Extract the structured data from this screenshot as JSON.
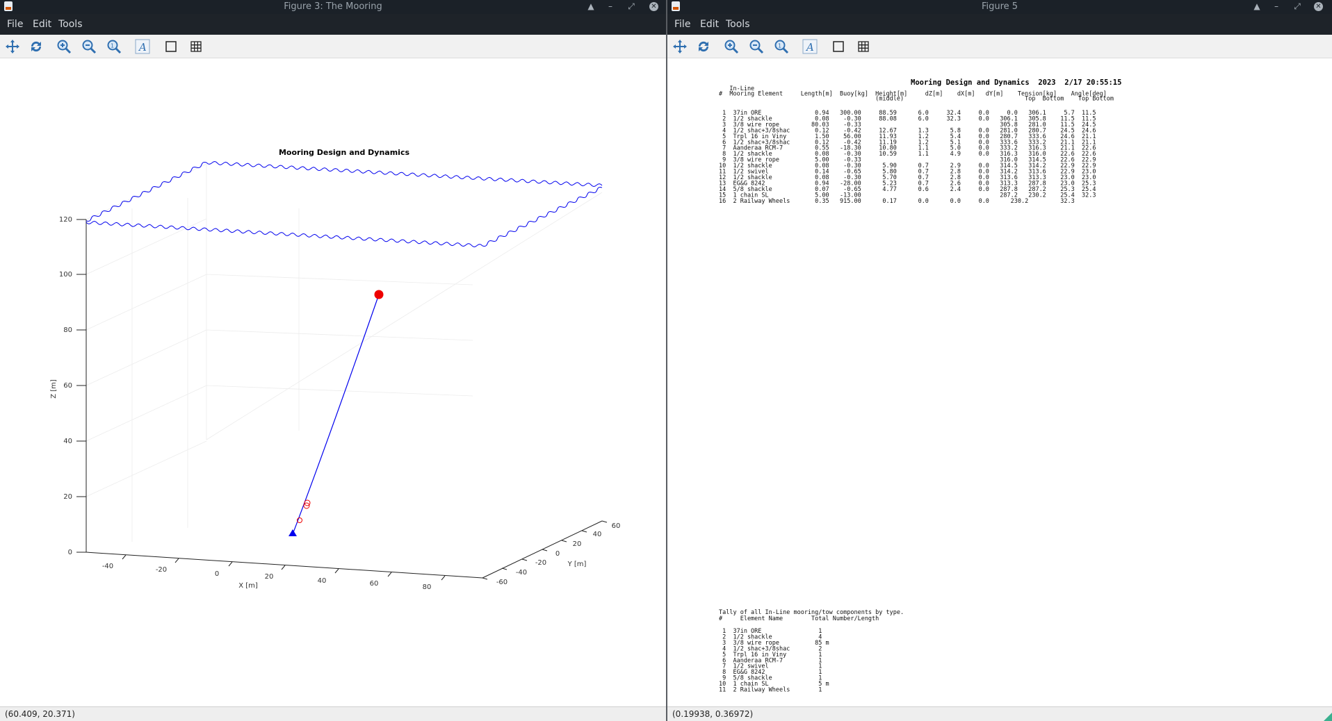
{
  "left_window": {
    "title": "Figure 3: The Mooring",
    "menu": [
      "File",
      "Edit",
      "Tools"
    ],
    "tool_icons": [
      "pan-icon",
      "rotate-icon",
      "zoom-in-icon",
      "zoom-out-icon",
      "zoom-reset-icon",
      "text-insert-icon",
      "axes-box-icon",
      "grid-icon"
    ],
    "status": "(60.409, 20.371)",
    "plot": {
      "title": "Mooring Design and Dynamics",
      "xlabel": "X [m]",
      "ylabel": "Y [m]",
      "zlabel": "Z [m]",
      "z_ticks": [
        "0",
        "20",
        "40",
        "60",
        "80",
        "100",
        "120"
      ],
      "x_ticks": [
        "-40",
        "-20",
        "0",
        "20",
        "40",
        "60",
        "80"
      ],
      "y_ticks": [
        "-60",
        "-40",
        "-20",
        "0",
        "20",
        "40",
        "60"
      ],
      "line_color": "#0000ee",
      "float_color": "#ee0000",
      "anchor_color": "#0000ee"
    }
  },
  "right_window": {
    "title": "Figure 5",
    "menu": [
      "File",
      "Edit",
      "Tools"
    ],
    "tool_icons": [
      "pan-icon",
      "rotate-icon",
      "zoom-in-icon",
      "zoom-out-icon",
      "zoom-reset-icon",
      "text-insert-icon",
      "axes-box-icon",
      "grid-icon"
    ],
    "status": "(0.19938, 0.36972)",
    "report": {
      "heading": "Mooring Design and Dynamics  2023  2/17 20:55:15",
      "header_lines": [
        "   In-Line",
        "#  Mooring Element     Length[m]  Buoy[kg]  Height[m]     dZ[m]    dX[m]   dY[m]    Tension[kg]    Angle[deg]",
        "                                            (middle)                                  Top  Bottom    Top Bottom"
      ],
      "rows": [
        " 1  37in ORE               0.94   300.00     88.59      6.0     32.4     0.0     0.0   306.1     5.7  11.5",
        " 2  1/2 shackle            0.08    -0.30     88.08      6.0     32.3     0.0   306.1   305.8    11.5  11.5",
        " 3  3/8 wire rope         80.03    -0.33                                       305.8   281.0    11.5  24.5",
        " 4  1/2 shac+3/8shac       0.12    -0.42     12.67      1.3      5.8     0.0   281.0   280.7    24.5  24.6",
        " 5  Trpl 16 in Viny        1.50    56.00     11.93      1.2      5.4     0.0   280.7   333.6    24.6  21.1",
        " 6  1/2 shac+3/8shac       0.12    -0.42     11.19      1.2      5.1     0.0   333.6   333.2    21.1  21.1",
        " 7  Aanderaa RCM-7         0.55   -18.30     10.80      1.1      5.0     0.0   333.2   316.3    21.1  22.6",
        " 8  1/2 shackle            0.08    -0.30     10.59      1.1      4.9     0.0   316.3   316.0    22.6  22.6",
        " 9  3/8 wire rope          5.00    -0.33                                       316.0   314.5    22.6  22.9",
        "10  1/2 shackle            0.08    -0.30      5.90      0.7      2.9     0.0   314.5   314.2    22.9  22.9",
        "11  1/2 swivel             0.14    -0.65      5.80      0.7      2.8     0.0   314.2   313.6    22.9  23.0",
        "12  1/2 shackle            0.08    -0.30      5.70      0.7      2.8     0.0   313.6   313.3    23.0  23.0",
        "13  EG&G 8242              0.94   -28.00      5.23      0.7      2.6     0.0   313.3   287.8    23.0  25.3",
        "14  5/8 shackle            0.07    -0.65      4.77      0.6      2.4     0.0   287.8   287.2    25.3  25.4",
        "15  1 chain SL             5.00   -13.00                                       287.2   230.2    25.4  32.3",
        "16  2 Railway Wheels       0.35   915.00      0.17      0.0      0.0     0.0      230.2         32.3"
      ],
      "tally_title": "Tally of all In-Line mooring/tow components by type.",
      "tally_header": "#     Element Name        Total Number/Length",
      "tally_rows": [
        " 1  37in ORE                1",
        " 2  1/2 shackle             4",
        " 3  3/8 wire rope          85 m",
        " 4  1/2 shac+3/8shac        2",
        " 5  Trpl 16 in Viny         1",
        " 6  Aanderaa RCM-7          1",
        " 7  1/2 swivel              1",
        " 8  EG&G 8242               1",
        " 9  5/8 shackle             1",
        "10  1 chain SL              5 m",
        "11  2 Railway Wheels        1"
      ]
    }
  }
}
